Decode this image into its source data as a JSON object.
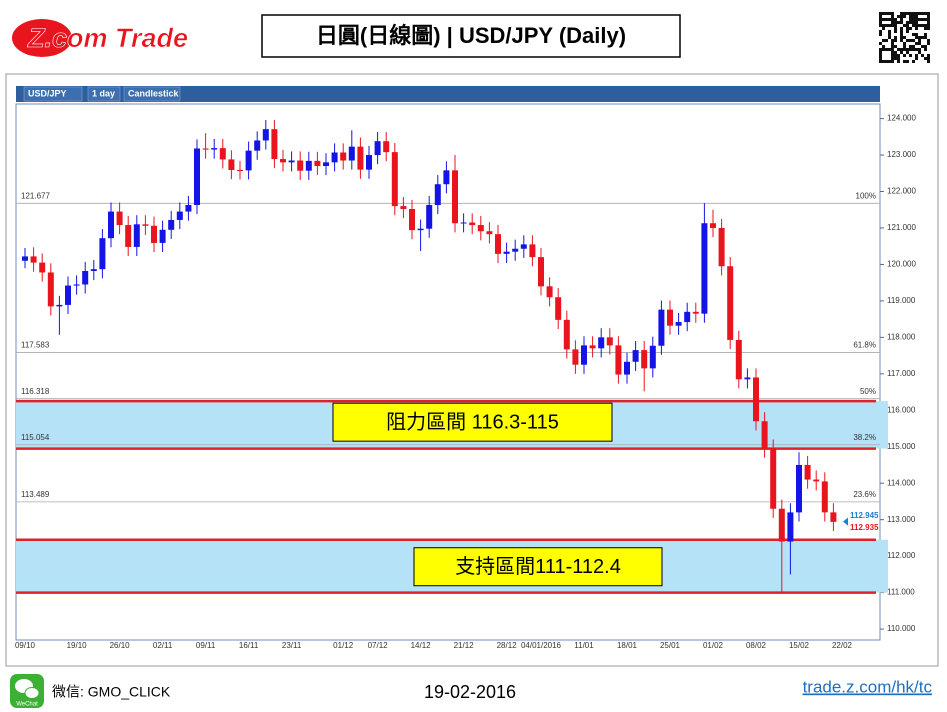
{
  "page": {
    "logo": "Z.com Trade",
    "wechat_icon": "WeChat",
    "wechat": "微信: GMO_CLICK",
    "date": "19-02-2016",
    "link": "trade.z.com/hk/tc",
    "toolbar": [
      "USD/JPY",
      "1 day",
      "Candlestick"
    ]
  },
  "chart_data": {
    "type": "candlestick",
    "title": "日圓(日線圖) | USD/JPY (Daily)",
    "up_color": "#1414e6",
    "down_color": "#e8141e",
    "grid": true,
    "ylim": [
      109.7,
      124.4
    ],
    "yticks": [
      {
        "value": 110,
        "label": "110.000"
      },
      {
        "value": 111,
        "label": "111.000"
      },
      {
        "value": 112,
        "label": "112.000"
      },
      {
        "value": 113,
        "label": "113.000"
      },
      {
        "value": 114,
        "label": "114.000"
      },
      {
        "value": 115,
        "label": "115.000"
      },
      {
        "value": 116,
        "label": "116.000"
      },
      {
        "value": 117,
        "label": "117.000"
      },
      {
        "value": 118,
        "label": "118.000"
      },
      {
        "value": 119,
        "label": "119.000"
      },
      {
        "value": 120,
        "label": "120.000"
      },
      {
        "value": 121,
        "label": "121.000"
      },
      {
        "value": 122,
        "label": "122.000"
      },
      {
        "value": 123,
        "label": "123.000"
      },
      {
        "value": 124,
        "label": "124.000"
      }
    ],
    "categories": [
      "09/10",
      null,
      null,
      null,
      null,
      null,
      "19/10",
      null,
      null,
      null,
      null,
      "26/10",
      null,
      null,
      null,
      null,
      "02/11",
      null,
      null,
      null,
      null,
      "09/11",
      null,
      null,
      null,
      null,
      "16/11",
      null,
      null,
      null,
      null,
      "23/11",
      null,
      null,
      null,
      null,
      null,
      "01/12",
      null,
      null,
      null,
      "07/12",
      null,
      null,
      null,
      null,
      "14/12",
      null,
      null,
      null,
      null,
      "21/12",
      null,
      null,
      null,
      null,
      "28/12",
      null,
      null,
      null,
      "04/01/2016",
      null,
      null,
      null,
      null,
      "11/01",
      null,
      null,
      null,
      null,
      "18/01",
      null,
      null,
      null,
      null,
      "25/01",
      null,
      null,
      null,
      null,
      "01/02",
      null,
      null,
      null,
      null,
      "08/02",
      null,
      null,
      null,
      null,
      "15/02",
      null,
      null,
      null,
      null,
      "22/02"
    ],
    "ohlc": [
      [
        120.1,
        120.45,
        119.9,
        120.22
      ],
      [
        120.22,
        120.47,
        119.8,
        120.05
      ],
      [
        120.05,
        120.3,
        119.53,
        119.78
      ],
      [
        119.78,
        120.03,
        118.6,
        118.85
      ],
      [
        118.85,
        119.14,
        118.07,
        118.89
      ],
      [
        118.89,
        119.67,
        118.64,
        119.42
      ],
      [
        119.42,
        119.7,
        119.17,
        119.45
      ],
      [
        119.45,
        120.07,
        119.2,
        119.82
      ],
      [
        119.82,
        120.12,
        119.57,
        119.87
      ],
      [
        119.87,
        120.97,
        119.62,
        120.72
      ],
      [
        120.72,
        121.7,
        120.47,
        121.45
      ],
      [
        121.45,
        121.7,
        120.83,
        121.08
      ],
      [
        121.08,
        121.33,
        120.23,
        120.48
      ],
      [
        120.48,
        121.35,
        120.23,
        121.1
      ],
      [
        121.1,
        121.35,
        120.81,
        121.06
      ],
      [
        121.06,
        121.31,
        120.34,
        120.59
      ],
      [
        120.59,
        121.2,
        120.34,
        120.95
      ],
      [
        120.95,
        121.47,
        120.7,
        121.22
      ],
      [
        121.22,
        121.7,
        120.97,
        121.45
      ],
      [
        121.45,
        121.88,
        121.2,
        121.63
      ],
      [
        121.63,
        123.43,
        121.38,
        123.18
      ],
      [
        123.18,
        123.6,
        122.9,
        123.15
      ],
      [
        123.15,
        123.44,
        122.9,
        123.19
      ],
      [
        123.19,
        123.44,
        122.63,
        122.88
      ],
      [
        122.88,
        123.13,
        122.34,
        122.59
      ],
      [
        122.59,
        122.84,
        122.33,
        122.58
      ],
      [
        122.58,
        123.37,
        122.33,
        123.12
      ],
      [
        123.12,
        123.65,
        122.87,
        123.4
      ],
      [
        123.4,
        123.96,
        123.15,
        123.71
      ],
      [
        123.71,
        123.96,
        122.64,
        122.89
      ],
      [
        122.89,
        123.14,
        122.55,
        122.8
      ],
      [
        122.8,
        123.1,
        122.55,
        122.85
      ],
      [
        122.85,
        123.1,
        122.32,
        122.57
      ],
      [
        122.57,
        123.09,
        122.32,
        122.84
      ],
      [
        122.84,
        123.09,
        122.45,
        122.7
      ],
      [
        122.7,
        123.05,
        122.45,
        122.8
      ],
      [
        122.8,
        123.32,
        122.55,
        123.07
      ],
      [
        123.07,
        123.32,
        122.6,
        122.85
      ],
      [
        122.85,
        123.68,
        122.6,
        123.23
      ],
      [
        123.23,
        123.48,
        122.35,
        122.6
      ],
      [
        122.6,
        123.25,
        122.35,
        123
      ],
      [
        123,
        123.63,
        122.75,
        123.38
      ],
      [
        123.38,
        123.63,
        122.83,
        123.08
      ],
      [
        123.08,
        123.33,
        121.35,
        121.6
      ],
      [
        121.6,
        121.85,
        121.27,
        121.52
      ],
      [
        121.52,
        121.77,
        120.69,
        120.94
      ],
      [
        120.94,
        121.23,
        120.37,
        120.98
      ],
      [
        120.98,
        121.88,
        120.73,
        121.63
      ],
      [
        121.63,
        122.45,
        121.38,
        122.2
      ],
      [
        122.2,
        122.83,
        121.95,
        122.58
      ],
      [
        122.58,
        123,
        120.88,
        121.13
      ],
      [
        121.13,
        121.4,
        120.88,
        121.15
      ],
      [
        121.15,
        121.4,
        120.83,
        121.08
      ],
      [
        121.08,
        121.33,
        120.66,
        120.91
      ],
      [
        120.91,
        121.16,
        120.58,
        120.83
      ],
      [
        120.83,
        121.08,
        120.04,
        120.29
      ],
      [
        120.29,
        120.6,
        120.04,
        120.35
      ],
      [
        120.35,
        120.68,
        120.1,
        120.43
      ],
      [
        120.43,
        120.8,
        120.18,
        120.55
      ],
      [
        120.55,
        120.8,
        119.95,
        120.2
      ],
      [
        120.2,
        120.45,
        119.15,
        119.4
      ],
      [
        119.4,
        119.65,
        118.85,
        119.1
      ],
      [
        119.1,
        119.35,
        118.23,
        118.48
      ],
      [
        118.48,
        118.73,
        117.42,
        117.67
      ],
      [
        117.67,
        117.92,
        117,
        117.25
      ],
      [
        117.25,
        118.03,
        117,
        117.78
      ],
      [
        117.78,
        118.03,
        117.45,
        117.7
      ],
      [
        117.7,
        118.25,
        117.45,
        118
      ],
      [
        118,
        118.25,
        117.53,
        117.78
      ],
      [
        117.78,
        118.03,
        116.73,
        116.98
      ],
      [
        116.98,
        117.58,
        116.73,
        117.33
      ],
      [
        117.33,
        117.9,
        117.08,
        117.65
      ],
      [
        117.65,
        117.9,
        116.52,
        117.15
      ],
      [
        117.15,
        118.02,
        116.9,
        117.77
      ],
      [
        117.77,
        119.01,
        117.52,
        118.76
      ],
      [
        118.76,
        119.01,
        118.07,
        118.32
      ],
      [
        118.32,
        118.67,
        118.07,
        118.42
      ],
      [
        118.42,
        118.95,
        118.17,
        118.7
      ],
      [
        118.7,
        118.95,
        118.4,
        118.65
      ],
      [
        118.65,
        121.68,
        118.4,
        121.13
      ],
      [
        121.13,
        121.5,
        120.75,
        121
      ],
      [
        121,
        121.25,
        119.7,
        119.95
      ],
      [
        119.95,
        120.2,
        117.68,
        117.93
      ],
      [
        117.93,
        118.18,
        116.6,
        116.85
      ],
      [
        116.85,
        117.15,
        116.6,
        116.9
      ],
      [
        116.9,
        117.15,
        115.45,
        115.7
      ],
      [
        115.7,
        115.95,
        114.7,
        114.95
      ],
      [
        114.95,
        115.2,
        113.05,
        113.3
      ],
      [
        113.3,
        113.55,
        110.98,
        112.4
      ],
      [
        112.4,
        113.45,
        111.5,
        113.2
      ],
      [
        113.2,
        114.85,
        112.95,
        114.5
      ],
      [
        114.5,
        114.75,
        113.85,
        114.1
      ],
      [
        114.1,
        114.35,
        113.8,
        114.05
      ],
      [
        114.05,
        114.3,
        112.95,
        113.2
      ],
      [
        113.2,
        113.45,
        112.69,
        112.94
      ],
      null
    ],
    "levels": [
      {
        "value": 121.677,
        "pct": "100%"
      },
      {
        "value": 117.583,
        "pct": "61.8%"
      },
      {
        "value": 116.318,
        "pct": "50%"
      },
      {
        "value": 115.054,
        "pct": "38.2%"
      },
      {
        "value": 113.489,
        "pct": "23.6%"
      }
    ],
    "zones": [
      {
        "label": "阻力區間 116.3-115",
        "top": 116.25,
        "bottom": 114.95
      },
      {
        "label": "支持區間111-112.4",
        "top": 112.45,
        "bottom": 111
      }
    ],
    "prices": [
      {
        "value": 112.945,
        "color": "#1a7fd0"
      },
      {
        "value": 112.935,
        "color": "#e8141e"
      }
    ]
  }
}
